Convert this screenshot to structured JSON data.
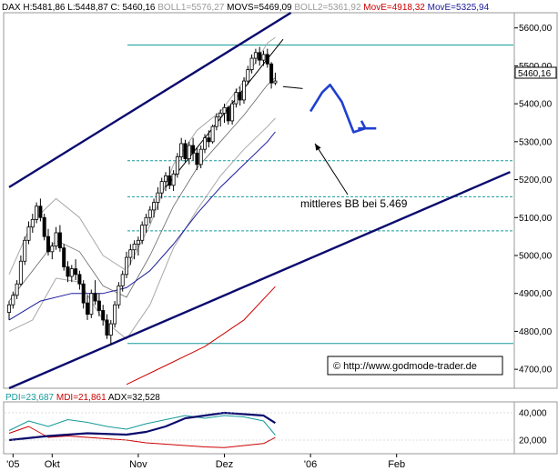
{
  "header": {
    "prefix": "DAX",
    "items": [
      {
        "text": "H:5481,86",
        "color": "#000000"
      },
      {
        "text": "L:5448,87",
        "color": "#000000"
      },
      {
        "text": "C: 5460,16",
        "color": "#000000"
      },
      {
        "text": "BOLL1=5576,27",
        "color": "#9a9a9a"
      },
      {
        "text": "MOVS=5469,09",
        "color": "#000000"
      },
      {
        "text": "BOLL2=5361,92",
        "color": "#9a9a9a"
      },
      {
        "text": "MovE=4918,32",
        "color": "#cc0000"
      },
      {
        "text": "MovE=5325,94",
        "color": "#1a1a9a"
      }
    ]
  },
  "sub_header": {
    "items": [
      {
        "text": "PDI=23,687",
        "color": "#159a9a"
      },
      {
        "text": "MDI=21,861",
        "color": "#cc0000"
      },
      {
        "text": "ADX=32,528",
        "color": "#000000"
      }
    ]
  },
  "annotation": "mittleres BB bei 5.469",
  "watermark": "© http://www.godmode-trader.de",
  "price_tag": "5460,16",
  "colors": {
    "candle": "#000000",
    "trend_channel": "#0a0a6e",
    "bollinger": "#a8a8a8",
    "ema_fast": "#1a1a9a",
    "ema_slow": "#cc0000",
    "level_lines": "#159a9a",
    "forecast": "#1f3fd0",
    "pdi": "#159a9a",
    "mdi": "#cc0000",
    "adx": "#0a0a6e"
  },
  "chart_data": {
    "type": "candlestick",
    "y_ticks": [
      "5600,00",
      "5500,00",
      "5400,00",
      "5300,00",
      "5200,00",
      "5100,00",
      "5000,00",
      "4900,00",
      "4800,00",
      "4700,00"
    ],
    "y_tick_values": [
      5600,
      5500,
      5400,
      5300,
      5200,
      5100,
      5000,
      4900,
      4800,
      4700
    ],
    "ylim": [
      4650,
      5640
    ],
    "x_ticks": [
      {
        "label": "'05",
        "index": 1
      },
      {
        "label": "Okt",
        "index": 11
      },
      {
        "label": "Nov",
        "index": 33
      },
      {
        "label": "Dez",
        "index": 55
      },
      {
        "label": "'06",
        "index": 77
      },
      {
        "label": "Feb",
        "index": 99
      }
    ],
    "x_index_range": [
      0,
      128
    ],
    "ohlc": [
      {
        "o": 4850,
        "h": 4880,
        "l": 4830,
        "c": 4870
      },
      {
        "o": 4870,
        "h": 4905,
        "l": 4860,
        "c": 4895
      },
      {
        "o": 4895,
        "h": 4935,
        "l": 4885,
        "c": 4925
      },
      {
        "o": 4925,
        "h": 5000,
        "l": 4920,
        "c": 4985
      },
      {
        "o": 4985,
        "h": 5050,
        "l": 4975,
        "c": 5040
      },
      {
        "o": 5040,
        "h": 5090,
        "l": 5030,
        "c": 5075
      },
      {
        "o": 5075,
        "h": 5110,
        "l": 5060,
        "c": 5095
      },
      {
        "o": 5095,
        "h": 5140,
        "l": 5085,
        "c": 5130
      },
      {
        "o": 5130,
        "h": 5150,
        "l": 5090,
        "c": 5100
      },
      {
        "o": 5100,
        "h": 5110,
        "l": 5040,
        "c": 5050
      },
      {
        "o": 5050,
        "h": 5070,
        "l": 5000,
        "c": 5010
      },
      {
        "o": 5010,
        "h": 5035,
        "l": 4990,
        "c": 5025
      },
      {
        "o": 5025,
        "h": 5075,
        "l": 5015,
        "c": 5060
      },
      {
        "o": 5060,
        "h": 5080,
        "l": 5010,
        "c": 5020
      },
      {
        "o": 5020,
        "h": 5030,
        "l": 4960,
        "c": 4970
      },
      {
        "o": 4970,
        "h": 4985,
        "l": 4930,
        "c": 4945
      },
      {
        "o": 4945,
        "h": 4975,
        "l": 4930,
        "c": 4965
      },
      {
        "o": 4965,
        "h": 4990,
        "l": 4935,
        "c": 4950
      },
      {
        "o": 4950,
        "h": 4960,
        "l": 4910,
        "c": 4925
      },
      {
        "o": 4925,
        "h": 4935,
        "l": 4860,
        "c": 4875
      },
      {
        "o": 4875,
        "h": 4895,
        "l": 4830,
        "c": 4845
      },
      {
        "o": 4845,
        "h": 4910,
        "l": 4835,
        "c": 4900
      },
      {
        "o": 4900,
        "h": 4935,
        "l": 4870,
        "c": 4880
      },
      {
        "o": 4880,
        "h": 4900,
        "l": 4840,
        "c": 4855
      },
      {
        "o": 4855,
        "h": 4870,
        "l": 4815,
        "c": 4830
      },
      {
        "o": 4830,
        "h": 4845,
        "l": 4780,
        "c": 4790
      },
      {
        "o": 4790,
        "h": 4830,
        "l": 4765,
        "c": 4820
      },
      {
        "o": 4820,
        "h": 4880,
        "l": 4810,
        "c": 4870
      },
      {
        "o": 4870,
        "h": 4930,
        "l": 4860,
        "c": 4920
      },
      {
        "o": 4920,
        "h": 4960,
        "l": 4905,
        "c": 4950
      },
      {
        "o": 4950,
        "h": 5010,
        "l": 4940,
        "c": 4995
      },
      {
        "o": 4995,
        "h": 5030,
        "l": 4975,
        "c": 5015
      },
      {
        "o": 5015,
        "h": 5040,
        "l": 4990,
        "c": 5030
      },
      {
        "o": 5030,
        "h": 5050,
        "l": 5000,
        "c": 5040
      },
      {
        "o": 5040,
        "h": 5090,
        "l": 5030,
        "c": 5080
      },
      {
        "o": 5080,
        "h": 5110,
        "l": 5060,
        "c": 5100
      },
      {
        "o": 5100,
        "h": 5130,
        "l": 5085,
        "c": 5120
      },
      {
        "o": 5120,
        "h": 5150,
        "l": 5100,
        "c": 5140
      },
      {
        "o": 5140,
        "h": 5180,
        "l": 5120,
        "c": 5165
      },
      {
        "o": 5165,
        "h": 5205,
        "l": 5150,
        "c": 5195
      },
      {
        "o": 5195,
        "h": 5220,
        "l": 5170,
        "c": 5210
      },
      {
        "o": 5210,
        "h": 5235,
        "l": 5175,
        "c": 5185
      },
      {
        "o": 5185,
        "h": 5225,
        "l": 5170,
        "c": 5215
      },
      {
        "o": 5215,
        "h": 5270,
        "l": 5205,
        "c": 5260
      },
      {
        "o": 5260,
        "h": 5310,
        "l": 5250,
        "c": 5295
      },
      {
        "o": 5295,
        "h": 5305,
        "l": 5245,
        "c": 5255
      },
      {
        "o": 5255,
        "h": 5300,
        "l": 5240,
        "c": 5290
      },
      {
        "o": 5290,
        "h": 5310,
        "l": 5250,
        "c": 5270
      },
      {
        "o": 5270,
        "h": 5285,
        "l": 5225,
        "c": 5240
      },
      {
        "o": 5240,
        "h": 5290,
        "l": 5230,
        "c": 5280
      },
      {
        "o": 5280,
        "h": 5320,
        "l": 5270,
        "c": 5310
      },
      {
        "o": 5310,
        "h": 5330,
        "l": 5285,
        "c": 5300
      },
      {
        "o": 5300,
        "h": 5345,
        "l": 5295,
        "c": 5340
      },
      {
        "o": 5340,
        "h": 5375,
        "l": 5330,
        "c": 5365
      },
      {
        "o": 5365,
        "h": 5385,
        "l": 5340,
        "c": 5375
      },
      {
        "o": 5375,
        "h": 5400,
        "l": 5350,
        "c": 5390
      },
      {
        "o": 5390,
        "h": 5395,
        "l": 5345,
        "c": 5355
      },
      {
        "o": 5355,
        "h": 5410,
        "l": 5345,
        "c": 5400
      },
      {
        "o": 5400,
        "h": 5440,
        "l": 5390,
        "c": 5430
      },
      {
        "o": 5430,
        "h": 5445,
        "l": 5395,
        "c": 5410
      },
      {
        "o": 5410,
        "h": 5470,
        "l": 5400,
        "c": 5460
      },
      {
        "o": 5460,
        "h": 5500,
        "l": 5450,
        "c": 5490
      },
      {
        "o": 5490,
        "h": 5530,
        "l": 5480,
        "c": 5520
      },
      {
        "o": 5520,
        "h": 5545,
        "l": 5505,
        "c": 5535
      },
      {
        "o": 5535,
        "h": 5550,
        "l": 5500,
        "c": 5515
      },
      {
        "o": 5515,
        "h": 5540,
        "l": 5500,
        "c": 5530
      },
      {
        "o": 5530,
        "h": 5545,
        "l": 5495,
        "c": 5505
      },
      {
        "o": 5505,
        "h": 5510,
        "l": 5440,
        "c": 5455
      },
      {
        "o": 5455,
        "h": 5482,
        "l": 5449,
        "c": 5460
      }
    ],
    "bollinger_upper": [
      [
        0,
        4950
      ],
      [
        6,
        5090
      ],
      [
        12,
        5150
      ],
      [
        18,
        5100
      ],
      [
        24,
        5000
      ],
      [
        30,
        4960
      ],
      [
        36,
        5080
      ],
      [
        42,
        5240
      ],
      [
        48,
        5330
      ],
      [
        54,
        5380
      ],
      [
        60,
        5460
      ],
      [
        66,
        5560
      ],
      [
        68,
        5575
      ]
    ],
    "bollinger_middle": [
      [
        0,
        4880
      ],
      [
        6,
        4960
      ],
      [
        12,
        5040
      ],
      [
        18,
        5010
      ],
      [
        24,
        4920
      ],
      [
        30,
        4890
      ],
      [
        36,
        5000
      ],
      [
        42,
        5130
      ],
      [
        48,
        5230
      ],
      [
        54,
        5300
      ],
      [
        60,
        5370
      ],
      [
        66,
        5450
      ],
      [
        68,
        5469
      ]
    ],
    "bollinger_lower": [
      [
        0,
        4800
      ],
      [
        6,
        4830
      ],
      [
        12,
        4940
      ],
      [
        18,
        4930
      ],
      [
        24,
        4830
      ],
      [
        30,
        4780
      ],
      [
        36,
        4870
      ],
      [
        42,
        5020
      ],
      [
        48,
        5120
      ],
      [
        54,
        5210
      ],
      [
        60,
        5280
      ],
      [
        66,
        5340
      ],
      [
        68,
        5362
      ]
    ],
    "ema_fast": [
      [
        0,
        4830
      ],
      [
        8,
        4880
      ],
      [
        16,
        4900
      ],
      [
        24,
        4900
      ],
      [
        30,
        4915
      ],
      [
        36,
        4960
      ],
      [
        42,
        5030
      ],
      [
        48,
        5110
      ],
      [
        54,
        5180
      ],
      [
        60,
        5240
      ],
      [
        66,
        5300
      ],
      [
        68,
        5326
      ]
    ],
    "ema_slow": [
      [
        30,
        4660
      ],
      [
        40,
        4710
      ],
      [
        50,
        4760
      ],
      [
        60,
        4830
      ],
      [
        68,
        4918
      ]
    ],
    "channel_upper": [
      [
        0,
        5180
      ],
      [
        72,
        5640
      ]
    ],
    "channel_lower": [
      [
        0,
        4650
      ],
      [
        128,
        5220
      ]
    ],
    "inner_trendline": [
      [
        40,
        5180
      ],
      [
        70,
        5570
      ]
    ],
    "level_lines": [
      5555,
      5250,
      5155,
      5065,
      4768
    ],
    "forecast_path": [
      [
        70,
        5445
      ],
      [
        75,
        5440
      ],
      [
        77,
        5380
      ],
      [
        80,
        5430
      ],
      [
        82,
        5450
      ],
      [
        85,
        5405
      ],
      [
        88,
        5325
      ],
      [
        91,
        5335
      ],
      [
        90,
        5355
      ]
    ],
    "indicator": {
      "ylim": [
        10000,
        48000
      ],
      "y_ticks": [
        "40,000",
        "20,000"
      ],
      "y_tick_values": [
        40000,
        20000
      ],
      "pdi": [
        [
          0,
          27000
        ],
        [
          5,
          34000
        ],
        [
          10,
          30000
        ],
        [
          15,
          35000
        ],
        [
          20,
          33000
        ],
        [
          25,
          30000
        ],
        [
          30,
          28000
        ],
        [
          35,
          32000
        ],
        [
          40,
          35000
        ],
        [
          45,
          38000
        ],
        [
          50,
          36000
        ],
        [
          55,
          38000
        ],
        [
          60,
          37000
        ],
        [
          65,
          34000
        ],
        [
          68,
          23687
        ]
      ],
      "mdi": [
        [
          0,
          25000
        ],
        [
          5,
          30000
        ],
        [
          10,
          22000
        ],
        [
          15,
          23000
        ],
        [
          20,
          22000
        ],
        [
          25,
          21000
        ],
        [
          30,
          20000
        ],
        [
          35,
          18000
        ],
        [
          40,
          17000
        ],
        [
          45,
          16000
        ],
        [
          50,
          15000
        ],
        [
          55,
          14500
        ],
        [
          60,
          16000
        ],
        [
          65,
          17500
        ],
        [
          68,
          21861
        ]
      ],
      "adx": [
        [
          0,
          20000
        ],
        [
          10,
          23000
        ],
        [
          20,
          25000
        ],
        [
          30,
          24000
        ],
        [
          35,
          26000
        ],
        [
          40,
          30000
        ],
        [
          45,
          36000
        ],
        [
          50,
          38000
        ],
        [
          55,
          40000
        ],
        [
          60,
          39000
        ],
        [
          65,
          38000
        ],
        [
          68,
          32528
        ]
      ]
    }
  }
}
